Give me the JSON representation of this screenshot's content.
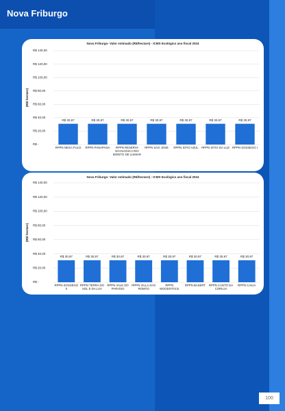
{
  "header": {
    "title": "Nova Friburgo"
  },
  "page_number": "100",
  "chart_data": [
    {
      "type": "bar",
      "title": "Nova Friburgo- Valor estimado (R$/hectare) - ICMS Ecológico ano fiscal 2024",
      "y_label": "(R$/ hectare)",
      "categories": [
        "RPPN NEGA FULO",
        "RPPN PANAPANA",
        "RPPN RESERVA ECOLOGICA RIO BONITO DE LUMIAR",
        "RPPN SÃO JOSÉ",
        "RPPN SITIO AZUL",
        "RPPN SITIO DA LUZ",
        "RPPN SOSSEGO I"
      ],
      "values": [
        30.97,
        30.97,
        30.97,
        30.97,
        30.97,
        30.97,
        30.97
      ],
      "value_labels": [
        "R$ 30,97",
        "R$ 30,97",
        "R$ 30,97",
        "R$ 30,97",
        "R$ 30,97",
        "R$ 30,97",
        "R$ 30,97"
      ],
      "color": "#1f6fd6",
      "ylim": [
        0,
        140
      ],
      "yticks": [
        {
          "value": 0,
          "label": "R$ -"
        },
        {
          "value": 20,
          "label": "R$ 20,00"
        },
        {
          "value": 40,
          "label": "R$ 40,00"
        },
        {
          "value": 60,
          "label": "R$ 60,00"
        },
        {
          "value": 80,
          "label": "R$ 80,00"
        },
        {
          "value": 100,
          "label": "R$ 100,00"
        },
        {
          "value": 120,
          "label": "R$ 120,00"
        },
        {
          "value": 140,
          "label": "R$ 140,00"
        }
      ],
      "grid": true
    },
    {
      "type": "bar",
      "title": "Nova Friburgo- Valor estimado (R$/hectare) - ICMS Ecológico ano fiscal 2024",
      "y_label": "(R$/ hectare)",
      "categories": [
        "RPPN SOSSEGO II",
        "RPPN TERRA DO SOL E DA LUA",
        "RPPN VALE DO PARAÍSO",
        "RPPN VILLA SÃO ROMÃO",
        "RPPN WOODSTOCK",
        "RPPN BASERT",
        "RPPN CANTO DA CORUJA",
        "RPPN CAIUA"
      ],
      "values": [
        30.97,
        30.97,
        30.97,
        30.97,
        30.97,
        30.97,
        30.97,
        30.97
      ],
      "value_labels": [
        "R$ 30,97",
        "R$ 30,97",
        "R$ 30,97",
        "R$ 30,97",
        "R$ 30,97",
        "R$ 30,97",
        "R$ 30,97",
        "R$ 30,97"
      ],
      "color": "#1f6fd6",
      "ylim": [
        0,
        140
      ],
      "yticks": [
        {
          "value": 0,
          "label": "R$ -"
        },
        {
          "value": 20,
          "label": "R$ 20,00"
        },
        {
          "value": 40,
          "label": "R$ 40,00"
        },
        {
          "value": 60,
          "label": "R$ 60,00"
        },
        {
          "value": 80,
          "label": "R$ 80,00"
        },
        {
          "value": 100,
          "label": "R$ 100,00"
        },
        {
          "value": 120,
          "label": "R$ 120,00"
        },
        {
          "value": 140,
          "label": "R$ 140,00"
        }
      ],
      "grid": true
    }
  ]
}
